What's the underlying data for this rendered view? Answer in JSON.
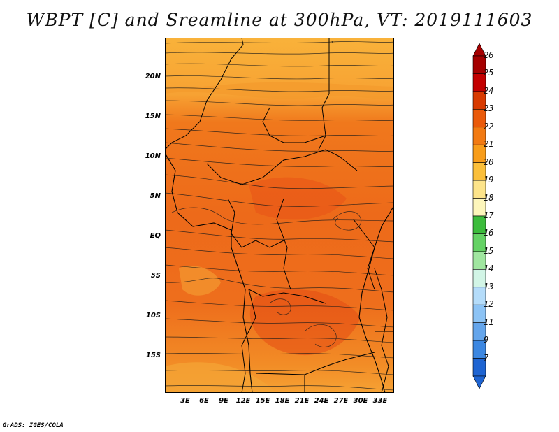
{
  "title": "WBPT [C] and Sreamline at 300hPa, VT: 2019111603",
  "credit": "GrADS: IGES/COLA",
  "lat_labels": [
    "20N",
    "15N",
    "10N",
    "5N",
    "EQ",
    "5S",
    "10S",
    "15S"
  ],
  "lon_labels": [
    "3E",
    "6E",
    "9E",
    "12E",
    "15E",
    "18E",
    "21E",
    "24E",
    "27E",
    "30E",
    "33E"
  ],
  "colorbar": {
    "labels": [
      "26",
      "25",
      "24",
      "23",
      "22",
      "21",
      "20",
      "19",
      "18",
      "17",
      "16",
      "15",
      "14",
      "13",
      "12",
      "11",
      "9",
      "7"
    ],
    "colors": [
      "#a50000",
      "#c30000",
      "#d83a00",
      "#ea5a0a",
      "#f27a12",
      "#f89d1a",
      "#fbbf3a",
      "#fde48a",
      "#fdf6bb",
      "#3cbc3c",
      "#64d264",
      "#a0e6a0",
      "#d2f5e6",
      "#b4dcfa",
      "#8cc3f5",
      "#64a5eb",
      "#3c87e1",
      "#1e64d2"
    ]
  }
}
